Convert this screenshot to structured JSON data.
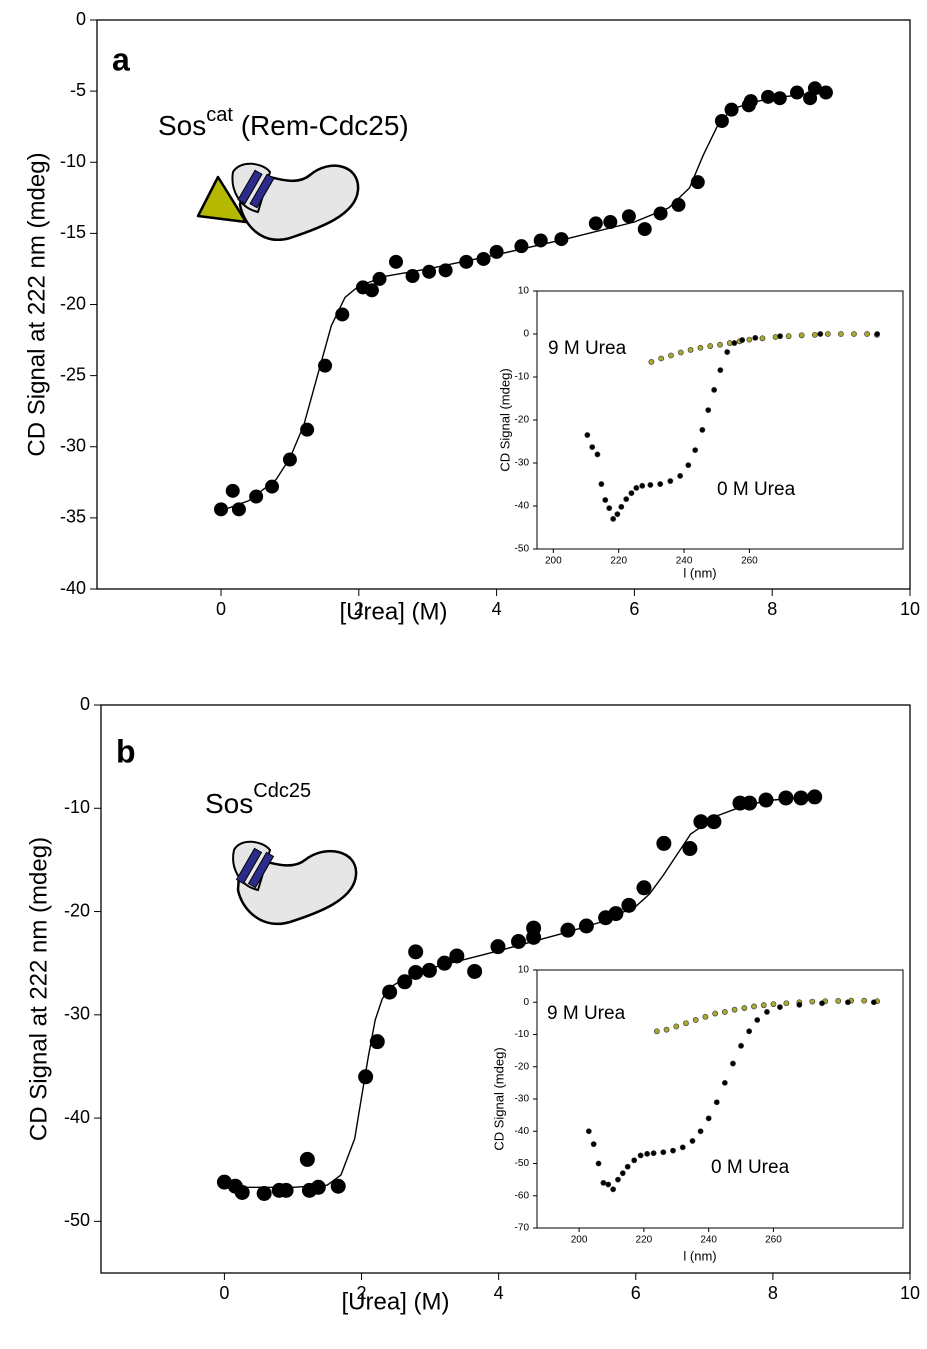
{
  "chart_data": [
    {
      "type": "scatter",
      "panel_label": "a",
      "protein_label": {
        "text": "Sos",
        "sup": "cat",
        "suffix": " (Rem-Cdc25)"
      },
      "x_label": "[Urea] (M)",
      "y_label": "CD Signal at 222 nm (mdeg)",
      "xlim": [
        -1.8,
        10
      ],
      "ylim": [
        -40,
        0
      ],
      "xticks": [
        0,
        2,
        4,
        6,
        8,
        10
      ],
      "yticks": [
        0,
        -5,
        -10,
        -15,
        -20,
        -25,
        -30,
        -35,
        -40
      ],
      "series": [
        {
          "mode": "markers",
          "color": "#000000",
          "x": [
            0,
            0.17,
            0.26,
            0.51,
            0.74,
            1.0,
            1.25,
            1.51,
            1.76,
            2.06,
            2.19,
            2.3,
            2.54,
            2.78,
            3.02,
            3.26,
            3.56,
            3.81,
            4.0,
            4.36,
            4.64,
            4.94,
            5.44,
            5.65,
            5.92,
            6.15,
            6.38,
            6.64,
            6.92,
            7.27,
            7.41,
            7.66,
            7.69,
            7.94,
            8.11,
            8.36,
            8.55,
            8.62,
            8.78
          ],
          "values": [
            -34.4,
            -33.1,
            -34.4,
            -33.5,
            -32.8,
            -30.9,
            -28.8,
            -24.3,
            -20.7,
            -18.8,
            -19,
            -18.2,
            -17,
            -18,
            -17.7,
            -17.6,
            -17,
            -16.8,
            -16.3,
            -15.9,
            -15.5,
            -15.4,
            -14.3,
            -14.2,
            -13.8,
            -14.7,
            -13.6,
            -13,
            -11.4,
            -7.1,
            -6.3,
            -6,
            -5.7,
            -5.4,
            -5.5,
            -5.1,
            -5.5,
            -4.8,
            -5.1
          ]
        },
        {
          "mode": "line",
          "color": "#000000",
          "x": [
            0,
            0.4,
            0.8,
            1.0,
            1.2,
            1.4,
            1.6,
            1.8,
            2.0,
            2.4,
            3,
            4,
            5,
            6,
            6.5,
            6.8,
            7.0,
            7.2,
            7.4,
            7.7,
            8,
            8.5,
            8.8
          ],
          "values": [
            -34.5,
            -33.8,
            -32.3,
            -30.8,
            -28.5,
            -25,
            -21.5,
            -19.5,
            -18.7,
            -18,
            -17.5,
            -16.5,
            -15.4,
            -14.2,
            -13.2,
            -11.8,
            -9.5,
            -7.5,
            -6.3,
            -5.8,
            -5.5,
            -5.2,
            -5.1
          ]
        }
      ]
    },
    {
      "type": "scatter",
      "x_label": "l (nm)",
      "y_label": "CD Signal (mdeg)",
      "xlim": [
        195,
        307
      ],
      "ylim": [
        -50,
        10
      ],
      "xticks": [
        200,
        220,
        240,
        260
      ],
      "yticks": [
        10,
        0,
        -10,
        -20,
        -30,
        -40,
        -50
      ],
      "series": [
        {
          "name": "9 M Urea",
          "mode": "markers",
          "color": "#a8a832",
          "x": [
            230,
            233,
            236,
            239,
            242,
            245,
            248,
            251,
            254,
            257,
            260,
            264,
            268,
            272,
            276,
            280,
            284,
            288,
            292,
            296,
            299
          ],
          "values": [
            -6.5,
            -5.7,
            -5,
            -4.3,
            -3.7,
            -3.2,
            -2.8,
            -2.5,
            -2.1,
            -1.7,
            -1.3,
            -1,
            -0.7,
            -0.5,
            -0.3,
            -0.2,
            0,
            0,
            0,
            0,
            -0.2
          ]
        },
        {
          "name": "0 M Urea",
          "mode": "markers",
          "color": "#000000",
          "x": [
            210.4,
            211.9,
            213.5,
            214.7,
            215.9,
            217.1,
            218.3,
            219.6,
            220.8,
            222.3,
            223.9,
            225.4,
            227.2,
            229.7,
            232.7,
            235.8,
            238.8,
            241.3,
            243.4,
            245.6,
            247.4,
            249.2,
            251.1,
            253.2,
            255.4,
            257.8,
            261.8,
            269.4,
            281.7,
            299.1
          ],
          "values": [
            -23.5,
            -26.3,
            -28,
            -34.9,
            -38.6,
            -40.5,
            -43,
            -41.9,
            -40.2,
            -38.4,
            -37,
            -35.8,
            -35.3,
            -35.1,
            -34.9,
            -34.2,
            -33,
            -30.5,
            -27,
            -22.3,
            -17.7,
            -13,
            -8.4,
            -4.2,
            -2.1,
            -1.4,
            -0.9,
            -0.5,
            0,
            0
          ]
        }
      ]
    },
    {
      "type": "scatter",
      "panel_label": "b",
      "protein_label": {
        "text": "Sos",
        "sup": "Cdc25"
      },
      "x_label": "[Urea] (M)",
      "y_label": "CD Signal at 222 nm (mdeg)",
      "xlim": [
        -1.8,
        10
      ],
      "ylim": [
        -55,
        0
      ],
      "xticks": [
        0,
        2,
        4,
        6,
        8,
        10
      ],
      "yticks": [
        0,
        -10,
        -20,
        -30,
        -40,
        -50
      ],
      "series": [
        {
          "mode": "markers",
          "color": "#000000",
          "x": [
            0,
            0.16,
            0.26,
            0.58,
            0.8,
            0.9,
            1.21,
            1.24,
            1.37,
            1.66,
            2.06,
            2.23,
            2.41,
            2.63,
            2.79,
            2.79,
            2.99,
            3.21,
            3.39,
            3.65,
            3.99,
            4.29,
            4.51,
            4.51,
            5.01,
            5.28,
            5.56,
            5.71,
            5.9,
            6.12,
            6.41,
            6.79,
            6.95,
            7.14,
            7.52,
            7.66,
            7.9,
            8.19,
            8.41,
            8.61
          ],
          "values": [
            -46.2,
            -46.6,
            -47.2,
            -47.3,
            -47,
            -47,
            -44,
            -47,
            -46.7,
            -46.6,
            -36,
            -32.6,
            -27.8,
            -26.8,
            -25.9,
            -23.9,
            -25.7,
            -25,
            -24.3,
            -25.8,
            -23.4,
            -22.9,
            -21.6,
            -22.5,
            -21.8,
            -21.4,
            -20.6,
            -20.2,
            -19.4,
            -17.7,
            -13.4,
            -13.9,
            -11.3,
            -11.3,
            -9.5,
            -9.5,
            -9.2,
            -9.0,
            -9.0,
            -8.9
          ]
        },
        {
          "mode": "line",
          "color": "#000000",
          "x": [
            0,
            0.5,
            1,
            1.5,
            1.7,
            1.9,
            2.0,
            2.1,
            2.2,
            2.3,
            2.4,
            2.6,
            3,
            4,
            5,
            5.5,
            6,
            6.2,
            6.4,
            6.6,
            6.8,
            7.2,
            7.6,
            8,
            8.6
          ],
          "values": [
            -46.7,
            -46.7,
            -46.7,
            -46.5,
            -45.5,
            -42,
            -38,
            -34,
            -30.5,
            -28.5,
            -27.4,
            -26.6,
            -25.5,
            -23.8,
            -22,
            -21,
            -19.5,
            -18.3,
            -16.5,
            -14.5,
            -12.5,
            -10.7,
            -9.7,
            -9.2,
            -8.9
          ]
        }
      ]
    },
    {
      "type": "scatter",
      "x_label": "l (nm)",
      "y_label": "CD Signal (mdeg)",
      "xlim": [
        187,
        300
      ],
      "ylim": [
        -70,
        10
      ],
      "xticks": [
        200,
        220,
        240,
        260
      ],
      "yticks": [
        10,
        0,
        -10,
        -20,
        -30,
        -40,
        -50,
        -60,
        -70
      ],
      "series": [
        {
          "name": "9 M Urea",
          "mode": "markers",
          "color": "#a8a832",
          "x": [
            224,
            227,
            230,
            233,
            236,
            239,
            242,
            245,
            248,
            251,
            254,
            257,
            260,
            264,
            268,
            272,
            276,
            280,
            284,
            288,
            292
          ],
          "values": [
            -9,
            -8.5,
            -7.5,
            -6.5,
            -5.5,
            -4.5,
            -3.5,
            -3,
            -2.3,
            -1.8,
            -1.3,
            -0.9,
            -0.6,
            -0.3,
            0,
            0.2,
            0.3,
            0.4,
            0.5,
            0.5,
            0.3
          ]
        },
        {
          "name": "0 M Urea",
          "mode": "markers",
          "color": "#000000",
          "x": [
            203,
            204.5,
            206,
            207.5,
            209,
            210.5,
            212,
            213.5,
            215,
            217,
            219,
            221,
            223,
            226,
            229,
            232,
            235,
            237.5,
            240,
            242.5,
            245,
            247.5,
            250,
            252.5,
            255,
            258,
            262,
            268,
            275,
            283,
            291
          ],
          "values": [
            -40,
            -44,
            -50,
            -56,
            -56.5,
            -58,
            -55,
            -53,
            -51,
            -49,
            -47.5,
            -47,
            -46.8,
            -46.5,
            -46,
            -45,
            -43,
            -40,
            -36,
            -31,
            -25,
            -19,
            -13.5,
            -9,
            -5.5,
            -3,
            -1.5,
            -0.8,
            -0.3,
            0,
            0
          ]
        }
      ]
    }
  ]
}
